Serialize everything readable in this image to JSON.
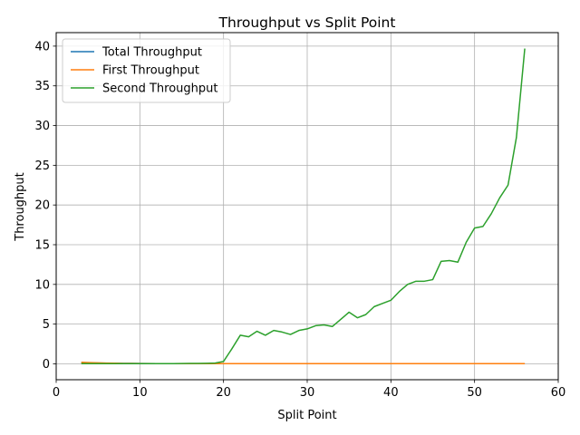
{
  "chart_data": {
    "type": "line",
    "title": "Throughput vs Split Point",
    "xlabel": "Split Point",
    "ylabel": "Throughput",
    "xlim": [
      0,
      60
    ],
    "ylim": [
      -2,
      41.7
    ],
    "xticks": [
      0,
      10,
      20,
      30,
      40,
      50,
      60
    ],
    "yticks": [
      0,
      5,
      10,
      15,
      20,
      25,
      30,
      35,
      40
    ],
    "grid": true,
    "legend_position": "top-left",
    "series": [
      {
        "name": "Total Throughput",
        "color": "#1f77b4",
        "x": [
          3,
          4,
          5,
          6,
          7,
          8,
          9,
          10,
          12,
          14,
          16,
          18,
          20,
          25,
          30,
          35,
          40,
          45,
          50,
          55,
          56
        ],
        "y": [
          0.15,
          0.12,
          0.1,
          0.08,
          0.07,
          0.06,
          0.05,
          0.04,
          0.03,
          0.03,
          0.02,
          0.02,
          0.02,
          0.02,
          0.02,
          0.02,
          0.02,
          0.02,
          0.02,
          0.02,
          0.02
        ]
      },
      {
        "name": "First Throughput",
        "color": "#ff7f0e",
        "x": [
          3,
          4,
          5,
          6,
          7,
          8,
          9,
          10,
          12,
          14,
          16,
          18,
          20,
          25,
          30,
          35,
          40,
          45,
          50,
          55,
          56
        ],
        "y": [
          0.2,
          0.15,
          0.12,
          0.1,
          0.08,
          0.06,
          0.05,
          0.04,
          0.03,
          0.03,
          0.02,
          0.02,
          0.02,
          0.02,
          0.02,
          0.02,
          0.02,
          0.02,
          0.02,
          0.02,
          0.02
        ]
      },
      {
        "name": "Second Throughput",
        "color": "#2ca02c",
        "x": [
          3,
          4,
          5,
          6,
          7,
          8,
          9,
          10,
          11,
          12,
          13,
          14,
          15,
          16,
          17,
          18,
          19,
          20,
          21,
          22,
          23,
          24,
          25,
          26,
          27,
          28,
          29,
          30,
          31,
          32,
          33,
          34,
          35,
          36,
          37,
          38,
          39,
          40,
          41,
          42,
          43,
          44,
          45,
          46,
          47,
          48,
          49,
          50,
          51,
          52,
          53,
          54,
          55,
          56
        ],
        "y": [
          0.02,
          0.02,
          0.02,
          0.02,
          0.02,
          0.02,
          0.02,
          0.02,
          0.02,
          0.02,
          0.03,
          0.03,
          0.04,
          0.05,
          0.06,
          0.07,
          0.1,
          0.3,
          1.9,
          3.6,
          3.4,
          4.1,
          3.6,
          4.2,
          4.0,
          3.7,
          4.2,
          4.4,
          4.8,
          4.9,
          4.7,
          5.6,
          6.5,
          5.8,
          6.2,
          7.2,
          7.6,
          8.0,
          9.1,
          10.0,
          10.4,
          10.4,
          10.6,
          12.9,
          13.0,
          12.8,
          15.3,
          17.1,
          17.3,
          18.9,
          20.9,
          22.5,
          28.5,
          39.7
        ]
      }
    ]
  }
}
